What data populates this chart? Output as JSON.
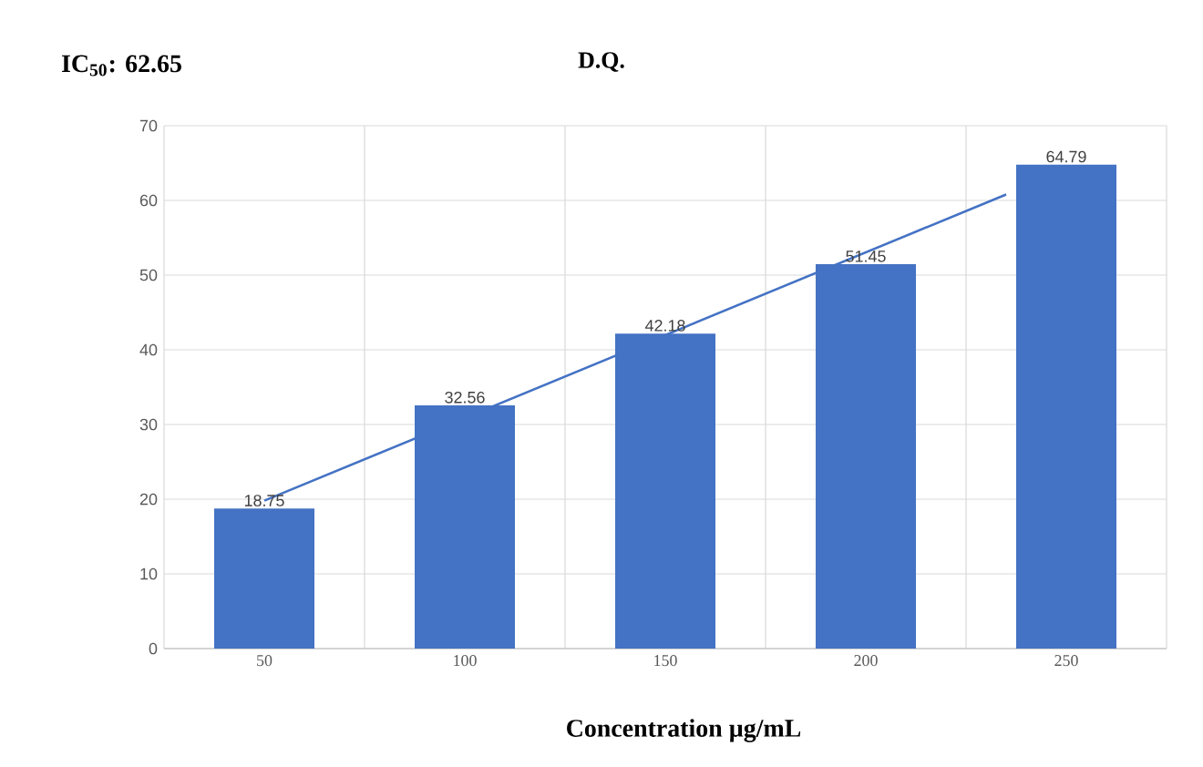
{
  "chart_data": {
    "type": "bar",
    "title": "D.Q.",
    "xlabel": "Concentration µg/mL",
    "annotations": [
      "IC$_{50}$: 62.65"
    ],
    "x": [
      50,
      100,
      150,
      200,
      250
    ],
    "series": [
      {
        "color": "#4472c4",
        "values": [
          18.75,
          32.56,
          42.18,
          51.45,
          64.79
        ],
        "value_labels": [
          "18.75",
          "32.56",
          "42.18",
          "51.45",
          "64.79"
        ]
      },
      {
        "type": "line",
        "color": "#4472c4",
        "x": [
          50,
          235
        ],
        "values": [
          19.8,
          60.8
        ]
      }
    ],
    "xlim": [
      25,
      275
    ],
    "xticks": [
      50,
      100,
      150,
      200,
      250
    ],
    "ylim": [
      0,
      70
    ],
    "yticks": [
      0,
      10,
      20,
      30,
      40,
      50,
      60,
      70
    ],
    "grid": true
  }
}
